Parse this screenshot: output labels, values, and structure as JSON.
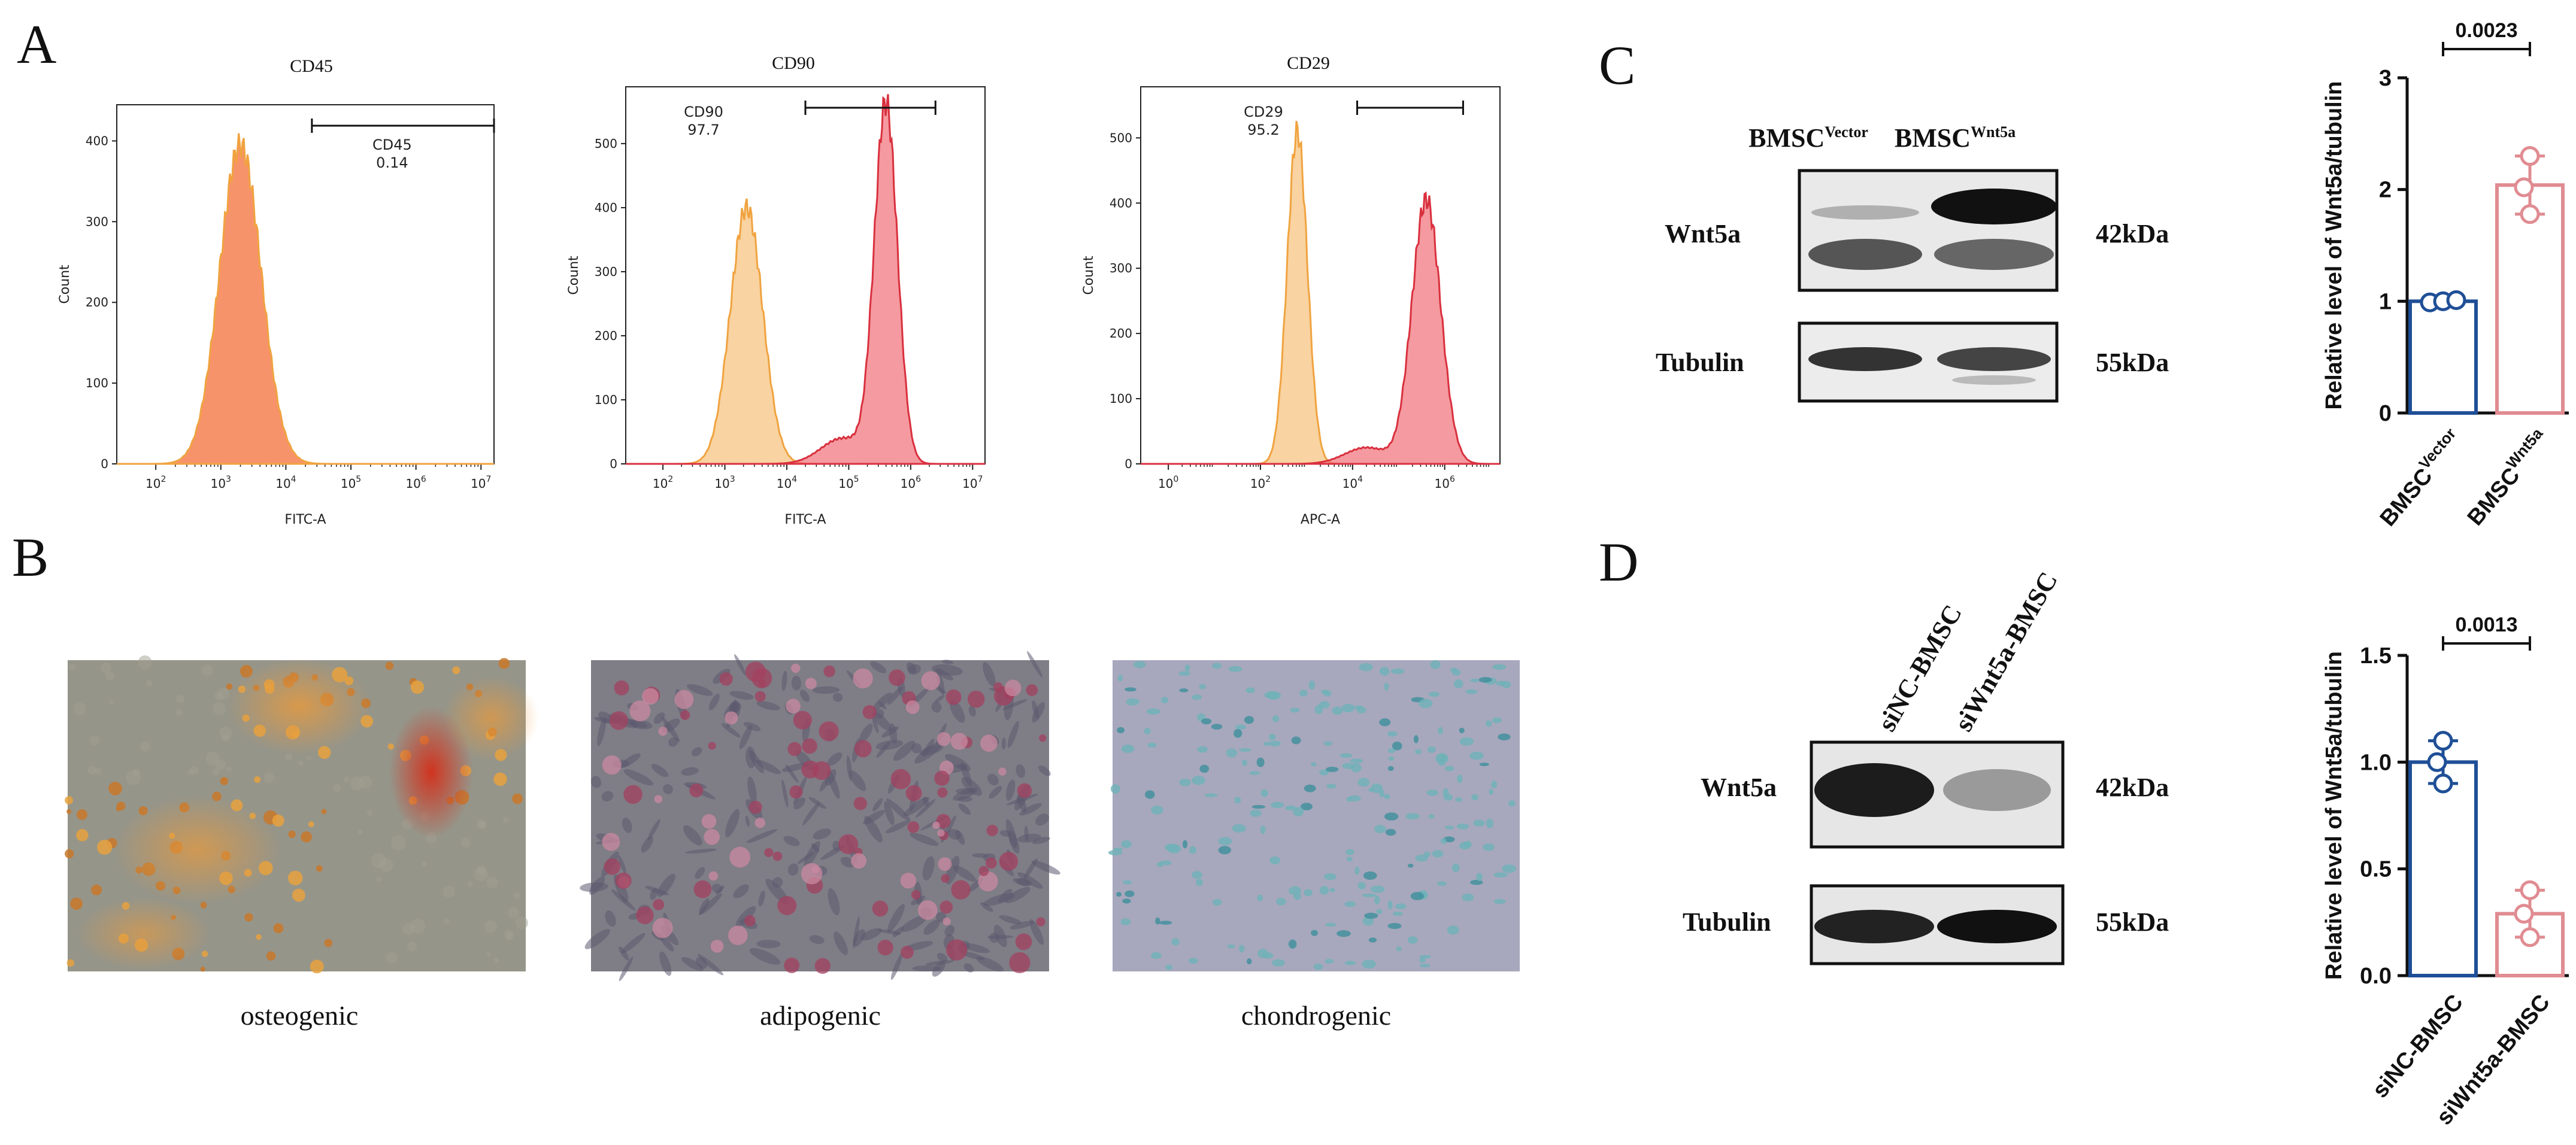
{
  "panel_letters": {
    "a": "A",
    "b": "B",
    "c": "C",
    "d": "D"
  },
  "colors": {
    "iso_fill": "#f8c889",
    "iso_stroke": "#f0a340",
    "stain_fill": "#ef6f78",
    "stain_stroke": "#d9303e",
    "cd45_fill": "#f7936a",
    "cd45_stroke": "#f0a340",
    "bar_blue": "#1f4f96",
    "bar_pink": "#e08c92"
  },
  "flow": [
    {
      "title": "CD45",
      "xlabel": "FITC-A",
      "ylabel": "Count",
      "gate_name": "CD45",
      "gate_value": "0.14",
      "yticks": [
        "0",
        "100",
        "200",
        "300",
        "400"
      ],
      "xticks": [
        {
          "base": "10",
          "exp": "2"
        },
        {
          "base": "10",
          "exp": "3"
        },
        {
          "base": "10",
          "exp": "4"
        },
        {
          "base": "10",
          "exp": "5"
        },
        {
          "base": "10",
          "exp": "6"
        },
        {
          "base": "10",
          "exp": "7"
        }
      ]
    },
    {
      "title": "CD90",
      "xlabel": "FITC-A",
      "ylabel": "Count",
      "gate_name": "CD90",
      "gate_value": "97.7",
      "yticks": [
        "0",
        "100",
        "200",
        "300",
        "400",
        "500"
      ],
      "xticks": [
        {
          "base": "10",
          "exp": "2"
        },
        {
          "base": "10",
          "exp": "3"
        },
        {
          "base": "10",
          "exp": "4"
        },
        {
          "base": "10",
          "exp": "5"
        },
        {
          "base": "10",
          "exp": "6"
        },
        {
          "base": "10",
          "exp": "7"
        }
      ]
    },
    {
      "title": "CD29",
      "xlabel": "APC-A",
      "ylabel": "Count",
      "gate_name": "CD29",
      "gate_value": "95.2",
      "yticks": [
        "0",
        "100",
        "200",
        "300",
        "400",
        "500"
      ],
      "xticks": [
        {
          "base": "10",
          "exp": "0"
        },
        {
          "base": "10",
          "exp": "2"
        },
        {
          "base": "10",
          "exp": "4"
        },
        {
          "base": "10",
          "exp": "6"
        }
      ]
    }
  ],
  "micrographs": [
    {
      "caption": "osteogenic"
    },
    {
      "caption": "adipogenic"
    },
    {
      "caption": "chondrogenic"
    }
  ],
  "western_c": {
    "lanes": [
      {
        "base": "BMSC",
        "sup": "Vector"
      },
      {
        "base": "BMSC",
        "sup": "Wnt5a"
      }
    ],
    "rows": [
      {
        "protein": "Wnt5a",
        "size": "42kDa"
      },
      {
        "protein": "Tubulin",
        "size": "55kDa"
      }
    ]
  },
  "western_d": {
    "lanes": [
      "siNC-BMSC",
      "siWnt5a-BMSC"
    ],
    "rows": [
      {
        "protein": "Wnt5a",
        "size": "42kDa"
      },
      {
        "protein": "Tubulin",
        "size": "55kDa"
      }
    ]
  },
  "chart_data": [
    {
      "type": "bar",
      "panel": "C",
      "categories": [
        {
          "base": "BMSC",
          "sup": "Vector"
        },
        {
          "base": "BMSC",
          "sup": "Wnt5a"
        }
      ],
      "values": [
        1.0,
        2.04
      ],
      "points": [
        [
          0.99,
          1.0,
          1.01
        ],
        [
          2.3,
          2.02,
          1.78
        ]
      ],
      "ylabel": "Relative level of Wnt5a/tubulin",
      "ylim": [
        0,
        3
      ],
      "yticks": [
        "0",
        "1",
        "2",
        "3"
      ],
      "significance": "0.0023"
    },
    {
      "type": "bar",
      "panel": "D",
      "categories": [
        "siNC-BMSC",
        "siWnt5a-BMSC"
      ],
      "values": [
        1.0,
        0.29
      ],
      "points": [
        [
          1.1,
          1.0,
          0.9
        ],
        [
          0.4,
          0.29,
          0.18
        ]
      ],
      "ylabel": "Relative level of Wnt5a/tubulin",
      "ylim": [
        0,
        1.5
      ],
      "yticks": [
        "0.0",
        "0.5",
        "1.0",
        "1.5"
      ],
      "significance": "0.0013"
    }
  ]
}
